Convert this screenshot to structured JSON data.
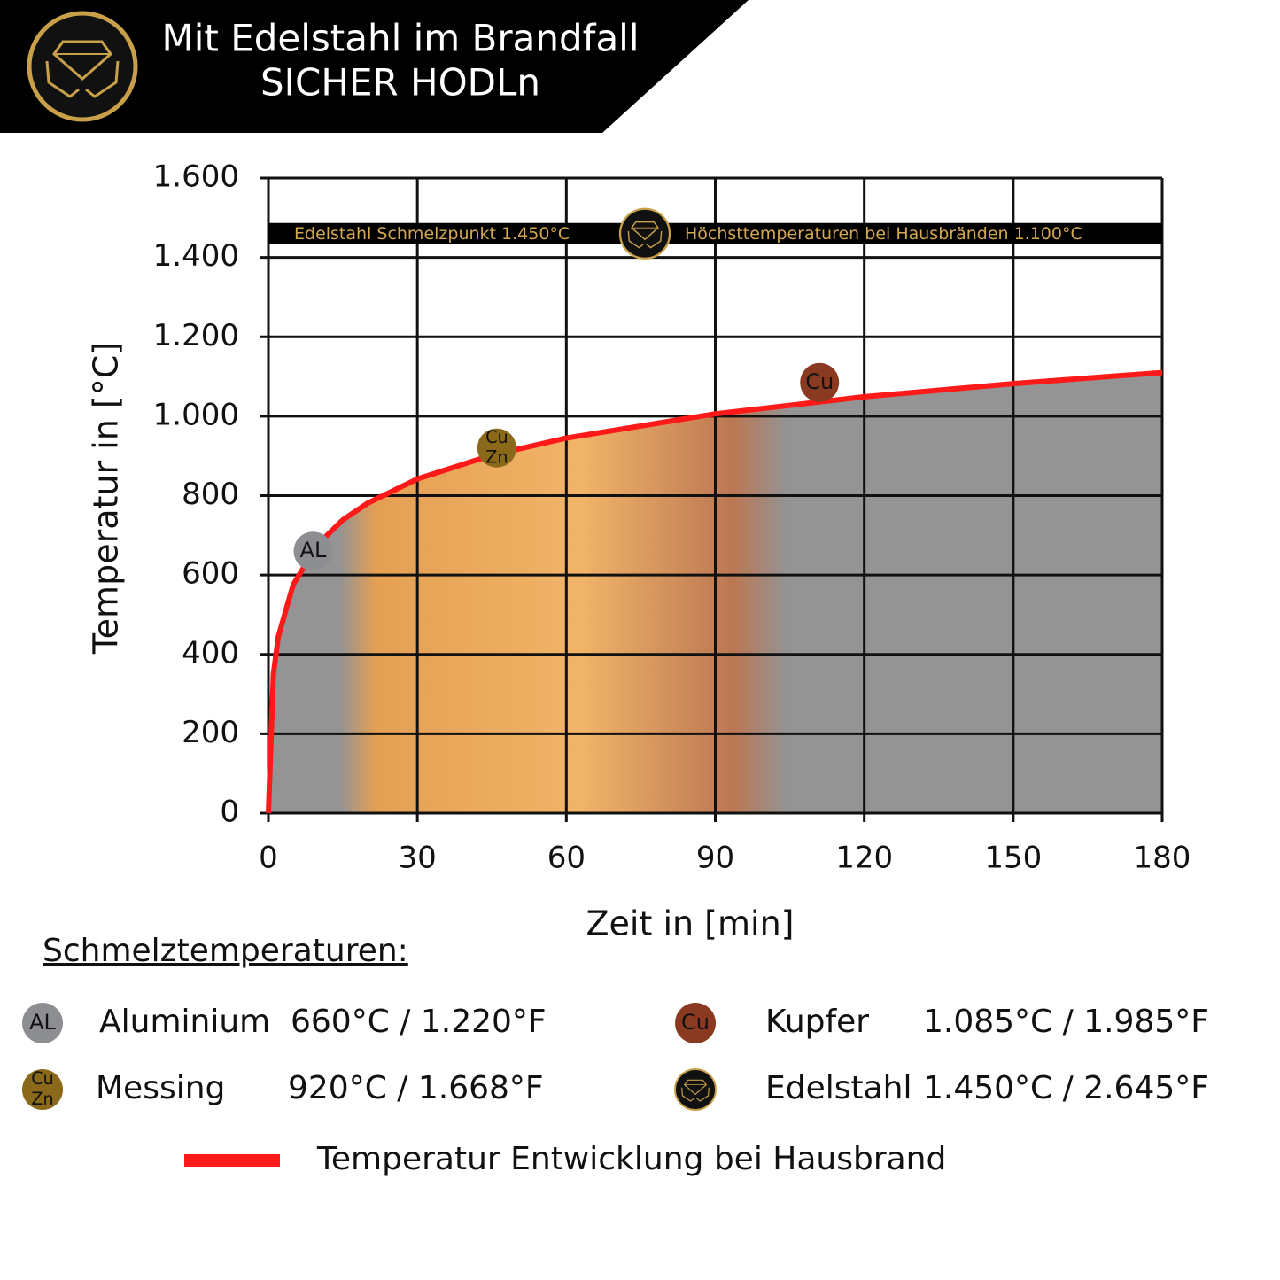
{
  "header": {
    "title_lines": [
      "Mit Edelstahl im Brandfall",
      "SICHER HODLn"
    ]
  },
  "chart_data": {
    "type": "line",
    "x_label": "Zeit in [min]",
    "y_label": "Temperatur in [°C]",
    "x": [
      0,
      1,
      2,
      5,
      10,
      15,
      20,
      30,
      45,
      60,
      90,
      120,
      150,
      180
    ],
    "series": [
      {
        "name": "Temperatur Entwicklung bei Hausbrand",
        "color": "#ff1a1a",
        "values": [
          0,
          350,
          445,
          576,
          678,
          739,
          781,
          842,
          902,
          945,
          1006,
          1049,
          1082,
          1110
        ]
      }
    ],
    "xlim": [
      0,
      180
    ],
    "ylim": [
      0,
      1600
    ],
    "xticks": [
      0,
      30,
      60,
      90,
      120,
      150,
      180
    ],
    "yticks": [
      0,
      200,
      400,
      600,
      800,
      {
        "value": 1000,
        "label": "1.000"
      },
      {
        "value": 1200,
        "label": "1.200"
      },
      {
        "value": 1400,
        "label": "1.400"
      },
      {
        "value": 1600,
        "label": "1.600"
      }
    ],
    "grid": true,
    "band": {
      "value": 1460,
      "left_text": "Edelstahl Schmelzpunkt 1.450°C",
      "right_text": "Höchsttemperaturen bei Hausbränden 1.100°C"
    },
    "markers": [
      {
        "label": [
          "AL"
        ],
        "x": 9,
        "y": 660,
        "color": "#8c8e92"
      },
      {
        "label": [
          "Cu",
          "Zn"
        ],
        "x": 46,
        "y": 920,
        "color": "#8a6a1a"
      },
      {
        "label": [
          "Cu"
        ],
        "x": 111,
        "y": 1085,
        "color": "#8b3a22"
      }
    ]
  },
  "legend": {
    "heading": "Schmelztemperaturen:",
    "items": [
      {
        "name": "Aluminium",
        "temps": "660°C / 1.220°F"
      },
      {
        "name": "Messing",
        "temps": "920°C / 1.668°F"
      },
      {
        "name": "Kupfer",
        "temps": "1.085°C / 1.985°F"
      },
      {
        "name": "Edelstahl",
        "temps": "1.450°C / 2.645°F"
      }
    ]
  }
}
